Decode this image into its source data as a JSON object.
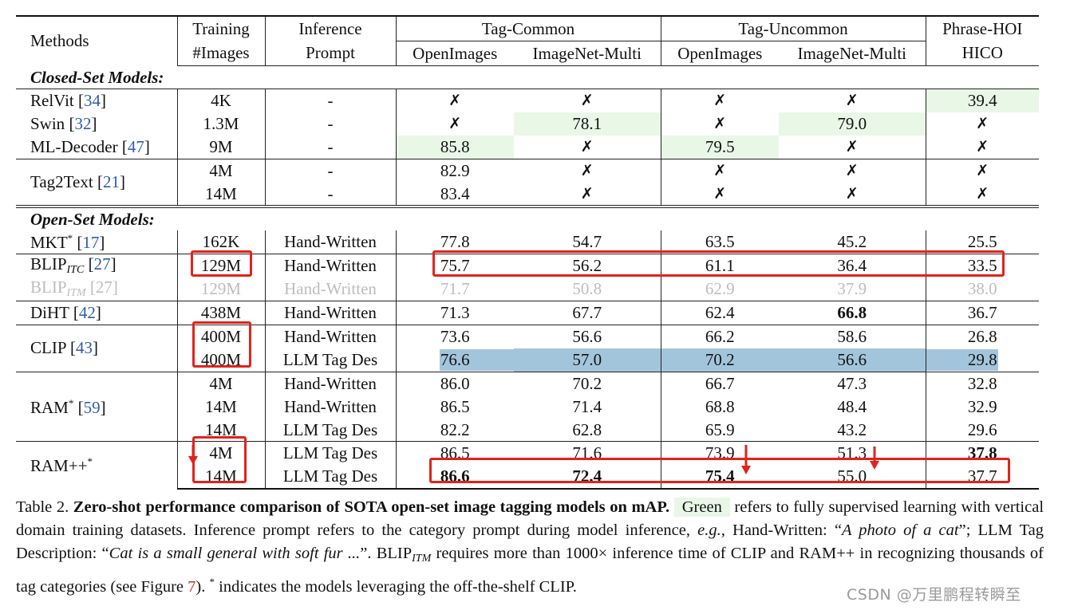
{
  "header": {
    "methods": "Methods",
    "training_l1": "Training",
    "training_l2": "#Images",
    "inference_l1": "Inference",
    "inference_l2": "Prompt",
    "tag_common": "Tag-Common",
    "tag_uncommon": "Tag-Uncommon",
    "phrase_hoi": "Phrase-HOI",
    "openimages": "OpenImages",
    "imagenet_multi": "ImageNet-Multi",
    "hico": "HICO"
  },
  "sections": {
    "closed": "Closed-Set Models:",
    "open": "Open-Set Models:"
  },
  "rows": {
    "relvit": {
      "name": "RelVit",
      "ref": "34",
      "images": "4K",
      "prompt": "-",
      "vals": [
        "✗",
        "✗",
        "✗",
        "✗",
        "39.4"
      ]
    },
    "swin": {
      "name": "Swin",
      "ref": "32",
      "images": "1.3M",
      "prompt": "-",
      "vals": [
        "✗",
        "78.1",
        "✗",
        "79.0",
        "✗"
      ]
    },
    "mldecoder": {
      "name": "ML-Decoder",
      "ref": "47",
      "images": "9M",
      "prompt": "-",
      "vals": [
        "85.8",
        "✗",
        "79.5",
        "✗",
        "✗"
      ]
    },
    "tag2text": {
      "name": "Tag2Text",
      "ref": "21",
      "r1": {
        "images": "4M",
        "prompt": "-",
        "vals": [
          "82.9",
          "✗",
          "✗",
          "✗",
          "✗"
        ]
      },
      "r2": {
        "images": "14M",
        "prompt": "-",
        "vals": [
          "83.4",
          "✗",
          "✗",
          "✗",
          "✗"
        ]
      }
    },
    "mkt": {
      "name": "MKT",
      "sup": "*",
      "ref": "17",
      "images": "162K",
      "prompt": "Hand-Written",
      "vals": [
        "77.8",
        "54.7",
        "63.5",
        "45.2",
        "25.5"
      ]
    },
    "blipitc": {
      "name": "BLIP",
      "sub": "ITC",
      "ref": "27",
      "images": "129M",
      "prompt": "Hand-Written",
      "vals": [
        "75.7",
        "56.2",
        "61.1",
        "36.4",
        "33.5"
      ]
    },
    "blipitm": {
      "name": "BLIP",
      "sub": "ITM",
      "ref": "27",
      "images": "129M",
      "prompt": "Hand-Written",
      "vals": [
        "71.7",
        "50.8",
        "62.9",
        "37.9",
        "38.0"
      ]
    },
    "diht": {
      "name": "DiHT",
      "ref": "42",
      "images": "438M",
      "prompt": "Hand-Written",
      "vals": [
        "71.3",
        "67.7",
        "62.4",
        "66.8",
        "36.7"
      ]
    },
    "clip": {
      "name": "CLIP",
      "ref": "43",
      "r1": {
        "images": "400M",
        "prompt": "Hand-Written",
        "vals": [
          "73.6",
          "56.6",
          "66.2",
          "58.6",
          "26.8"
        ]
      },
      "r2": {
        "images": "400M",
        "prompt": "LLM Tag Des",
        "vals": [
          "76.6",
          "57.0",
          "70.2",
          "56.6",
          "29.8"
        ]
      }
    },
    "ram": {
      "name": "RAM",
      "sup": "*",
      "ref": "59",
      "r1": {
        "images": "4M",
        "prompt": "Hand-Written",
        "vals": [
          "86.0",
          "70.2",
          "66.7",
          "47.3",
          "32.8"
        ]
      },
      "r2": {
        "images": "14M",
        "prompt": "Hand-Written",
        "vals": [
          "86.5",
          "71.4",
          "68.8",
          "48.4",
          "32.9"
        ]
      },
      "r3": {
        "images": "14M",
        "prompt": "LLM Tag Des",
        "vals": [
          "82.2",
          "62.8",
          "65.9",
          "43.2",
          "29.6"
        ]
      }
    },
    "rampp": {
      "name": "RAM++",
      "sup": "*",
      "r1": {
        "images": "4M",
        "prompt": "LLM Tag Des",
        "vals": [
          "86.5",
          "71.6",
          "73.9",
          "51.3",
          "37.8"
        ]
      },
      "r2": {
        "images": "14M",
        "prompt": "LLM Tag Des",
        "vals": [
          "86.6",
          "72.4",
          "75.4",
          "55.0",
          "37.7"
        ]
      }
    }
  },
  "caption": {
    "label": "Table 2.",
    "title": "Zero-shot performance comparison of SOTA open-set image tagging models on mAP.",
    "green": "Green",
    "t1": "refers to fully supervised learning with vertical domain training datasets. Inference prompt refers to the category prompt during model inference,",
    "eg": "e.g.,",
    "t2": "Hand-Written: “",
    "q1": "A photo of a cat",
    "t3": "”; LLM Tag Description: “",
    "q2": "Cat is a small general with soft fur ...",
    "t4": "”. BLIP",
    "itm": "ITM",
    "t5": "requires more than 1000× inference time of CLIP and RAM++ in recognizing thousands of tag categories (see Figure",
    "fig": "7",
    "t6": "). ",
    "star": "*",
    "t7": "indicates the models leveraging the off-the-shelf CLIP."
  },
  "watermark": "CSDN @万里鹏程转瞬至",
  "colors": {
    "green_cell": "#e8f7e6",
    "blue_row": "#a3c5dc",
    "annotation_red": "#e2221b",
    "ref_blue": "#2f5da8"
  }
}
